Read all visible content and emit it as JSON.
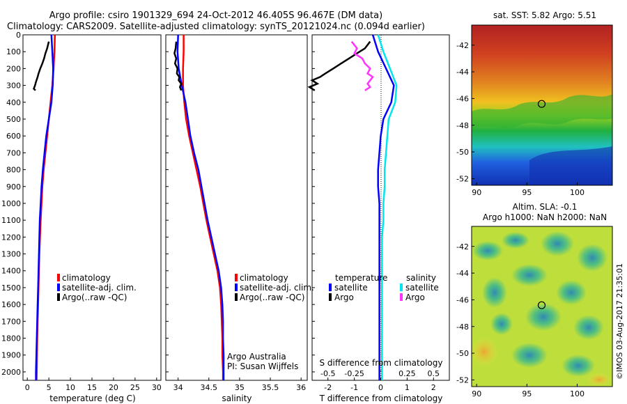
{
  "header": {
    "line1": "Argo profile: csiro 1901329_694 24-Oct-2012 46.405S 96.467E (DM data)",
    "line2": "Climatology: CARS2009. Satellite-adjusted climatology: synTS_20121024.nc (0.094d earlier)"
  },
  "colors": {
    "climatology": "#ff0000",
    "satellite": "#0000ff",
    "argo": "#000000",
    "satellite_sal": "#00e5ee",
    "argo_sal": "#ff33ff"
  },
  "credit": "©IMOS 03-Aug-2017 21:35:01",
  "chart_data": [
    {
      "type": "line",
      "panel": "temperature",
      "xlabel": "temperature (deg C)",
      "ylabel": "",
      "xlim": [
        -1,
        31
      ],
      "ylim": [
        2050,
        0
      ],
      "xticks": [
        0,
        5,
        10,
        15,
        20,
        25,
        30
      ],
      "yticks": [
        0,
        100,
        200,
        300,
        400,
        500,
        600,
        700,
        800,
        900,
        1000,
        1100,
        1200,
        1300,
        1400,
        1500,
        1600,
        1700,
        1800,
        1900,
        2000
      ],
      "legend": [
        "climatology",
        "satellite-adj. clim.",
        "Argo(..raw -QC)"
      ],
      "series": [
        {
          "name": "climatology",
          "color": "#ff0000",
          "x": [
            6.4,
            6.3,
            6.1,
            5.8,
            5.4,
            5.0,
            4.6,
            4.2,
            3.8,
            3.5,
            3.3,
            3.1,
            2.95,
            2.8,
            2.7,
            2.6,
            2.5,
            2.4,
            2.3,
            2.25,
            2.2,
            2.15
          ],
          "y": [
            0,
            100,
            200,
            300,
            400,
            500,
            600,
            700,
            800,
            900,
            1000,
            1100,
            1200,
            1300,
            1400,
            1500,
            1600,
            1700,
            1800,
            1900,
            2000,
            2050
          ]
        },
        {
          "name": "satellite-adj. clim.",
          "color": "#0000ff",
          "x": [
            5.6,
            5.8,
            6.0,
            5.9,
            5.6,
            5.0,
            4.4,
            4.0,
            3.6,
            3.3,
            3.1,
            2.9,
            2.8,
            2.7,
            2.6,
            2.5,
            2.4,
            2.3,
            2.2,
            2.1,
            2.0,
            2.0
          ],
          "y": [
            0,
            100,
            200,
            300,
            400,
            500,
            600,
            700,
            800,
            900,
            1000,
            1100,
            1200,
            1300,
            1400,
            1500,
            1600,
            1700,
            1800,
            1900,
            2000,
            2050
          ]
        },
        {
          "name": "Argo(..raw -QC)",
          "color": "#000000",
          "x": [
            5.0,
            4.6,
            4.2,
            3.9,
            3.5,
            3.0,
            2.6,
            2.4,
            2.0,
            1.8,
            1.5,
            1.9
          ],
          "y": [
            40,
            80,
            110,
            140,
            170,
            200,
            230,
            250,
            280,
            300,
            320,
            330
          ]
        }
      ]
    },
    {
      "type": "line",
      "panel": "salinity",
      "xlabel": "salinity",
      "ylabel": "",
      "xlim": [
        33.8,
        36.1
      ],
      "ylim": [
        2050,
        0
      ],
      "xticks": [
        34,
        34.5,
        35,
        35.5,
        36
      ],
      "legend": [
        "climatology",
        "satellite-adj. clim.",
        "Argo(..raw -QC)"
      ],
      "annotation": [
        "Argo Australia",
        "PI: Susan Wijffels"
      ],
      "series": [
        {
          "name": "climatology",
          "color": "#ff0000",
          "x": [
            34.09,
            34.09,
            34.08,
            34.08,
            34.1,
            34.13,
            34.18,
            34.24,
            34.3,
            34.36,
            34.41,
            34.46,
            34.52,
            34.58,
            34.64,
            34.68,
            34.7,
            34.71,
            34.72,
            34.72,
            34.73,
            34.73
          ],
          "y": [
            0,
            100,
            200,
            300,
            400,
            500,
            600,
            700,
            800,
            900,
            1000,
            1100,
            1200,
            1300,
            1400,
            1500,
            1600,
            1700,
            1800,
            1900,
            2000,
            2050
          ]
        },
        {
          "name": "satellite-adj. clim.",
          "color": "#0000ff",
          "x": [
            34.0,
            33.99,
            34.01,
            34.06,
            34.12,
            34.16,
            34.2,
            34.26,
            34.33,
            34.38,
            34.43,
            34.48,
            34.54,
            34.6,
            34.66,
            34.7,
            34.72,
            34.73,
            34.73,
            34.74,
            34.74,
            34.74
          ],
          "y": [
            0,
            100,
            200,
            300,
            400,
            500,
            600,
            700,
            800,
            900,
            1000,
            1100,
            1200,
            1300,
            1400,
            1500,
            1600,
            1700,
            1800,
            1900,
            2000,
            2050
          ]
        },
        {
          "name": "Argo(..raw -QC)",
          "color": "#000000",
          "x": [
            33.97,
            33.96,
            33.94,
            33.97,
            33.95,
            33.99,
            33.98,
            34.02,
            34.01,
            34.05,
            34.03,
            34.05
          ],
          "y": [
            40,
            80,
            110,
            140,
            170,
            200,
            230,
            250,
            270,
            290,
            310,
            330
          ]
        }
      ]
    },
    {
      "type": "line",
      "panel": "difference",
      "xlabel": "T difference from climatology",
      "xlabel_top": "S difference from climatology",
      "xlim": [
        -2.6,
        2.6
      ],
      "ylim": [
        2050,
        0
      ],
      "xticks": [
        -2,
        -1,
        0,
        1,
        2
      ],
      "xticks_s": [
        -0.5,
        -0.25,
        0,
        0.25,
        0.5
      ],
      "legend_headers": [
        "temperature",
        "salinity"
      ],
      "legend": [
        "satellite",
        "Argo",
        "satellite",
        "Argo"
      ],
      "series": [
        {
          "name": "satellite",
          "color": "#0000ff",
          "x": [
            -0.3,
            -0.1,
            0.2,
            0.5,
            0.4,
            0.1,
            0.0,
            -0.05,
            -0.1,
            -0.1,
            -0.05,
            -0.05,
            -0.05,
            -0.05,
            -0.05,
            -0.05,
            -0.05,
            -0.05,
            -0.05,
            -0.05,
            -0.05,
            -0.05
          ],
          "y": [
            0,
            100,
            200,
            300,
            400,
            500,
            600,
            700,
            800,
            900,
            1000,
            1100,
            1200,
            1300,
            1400,
            1500,
            1600,
            1700,
            1800,
            1900,
            2000,
            2050
          ]
        },
        {
          "name": "Argo",
          "color": "#000000",
          "x": [
            -0.4,
            -0.6,
            -0.9,
            -1.2,
            -1.5,
            -1.8,
            -2.1,
            -2.3,
            -2.6,
            -2.4,
            -2.7,
            -2.5
          ],
          "y": [
            40,
            80,
            110,
            140,
            170,
            200,
            230,
            250,
            270,
            290,
            310,
            330
          ]
        },
        {
          "name": "satellite",
          "color": "#00e5ee",
          "x": [
            -0.1,
            0.1,
            0.35,
            0.6,
            0.55,
            0.3,
            0.25,
            0.2,
            0.15,
            0.15,
            0.1,
            0.1,
            0.05,
            0.05,
            0.05,
            0.05,
            0.05,
            0.05,
            0.05,
            0.05,
            0.05,
            0.05
          ],
          "y": [
            0,
            100,
            200,
            300,
            400,
            500,
            600,
            700,
            800,
            900,
            1000,
            1100,
            1200,
            1300,
            1400,
            1500,
            1600,
            1700,
            1800,
            1900,
            2000,
            2050
          ]
        },
        {
          "name": "Argo",
          "color": "#ff33ff",
          "x": [
            -1.1,
            -0.9,
            -1.0,
            -0.7,
            -0.6,
            -0.4,
            -0.5,
            -0.3,
            -0.4,
            -0.5,
            -0.4,
            -0.6
          ],
          "y": [
            40,
            80,
            110,
            140,
            170,
            200,
            230,
            250,
            270,
            290,
            310,
            330
          ]
        }
      ]
    },
    {
      "type": "heatmap",
      "panel": "sst-map",
      "title": "sat. SST: 5.82 Argo: 5.51",
      "xlim": [
        89.5,
        103.5
      ],
      "ylim": [
        -52.5,
        -40.5
      ],
      "xticks": [
        90,
        95,
        100
      ],
      "yticks": [
        -42,
        -44,
        -46,
        -48,
        -50,
        -52
      ],
      "marker": {
        "lon": 96.467,
        "lat": -46.405
      }
    },
    {
      "type": "heatmap",
      "panel": "sla-map",
      "title": "Altim. SLA: -0.1",
      "subtitle": "Argo h1000: NaN h2000: NaN",
      "xlim": [
        89.5,
        103.5
      ],
      "ylim": [
        -52.5,
        -40.5
      ],
      "xticks": [
        90,
        95,
        100
      ],
      "yticks": [
        -42,
        -44,
        -46,
        -48,
        -50,
        -52
      ],
      "marker": {
        "lon": 96.467,
        "lat": -46.405
      }
    }
  ]
}
